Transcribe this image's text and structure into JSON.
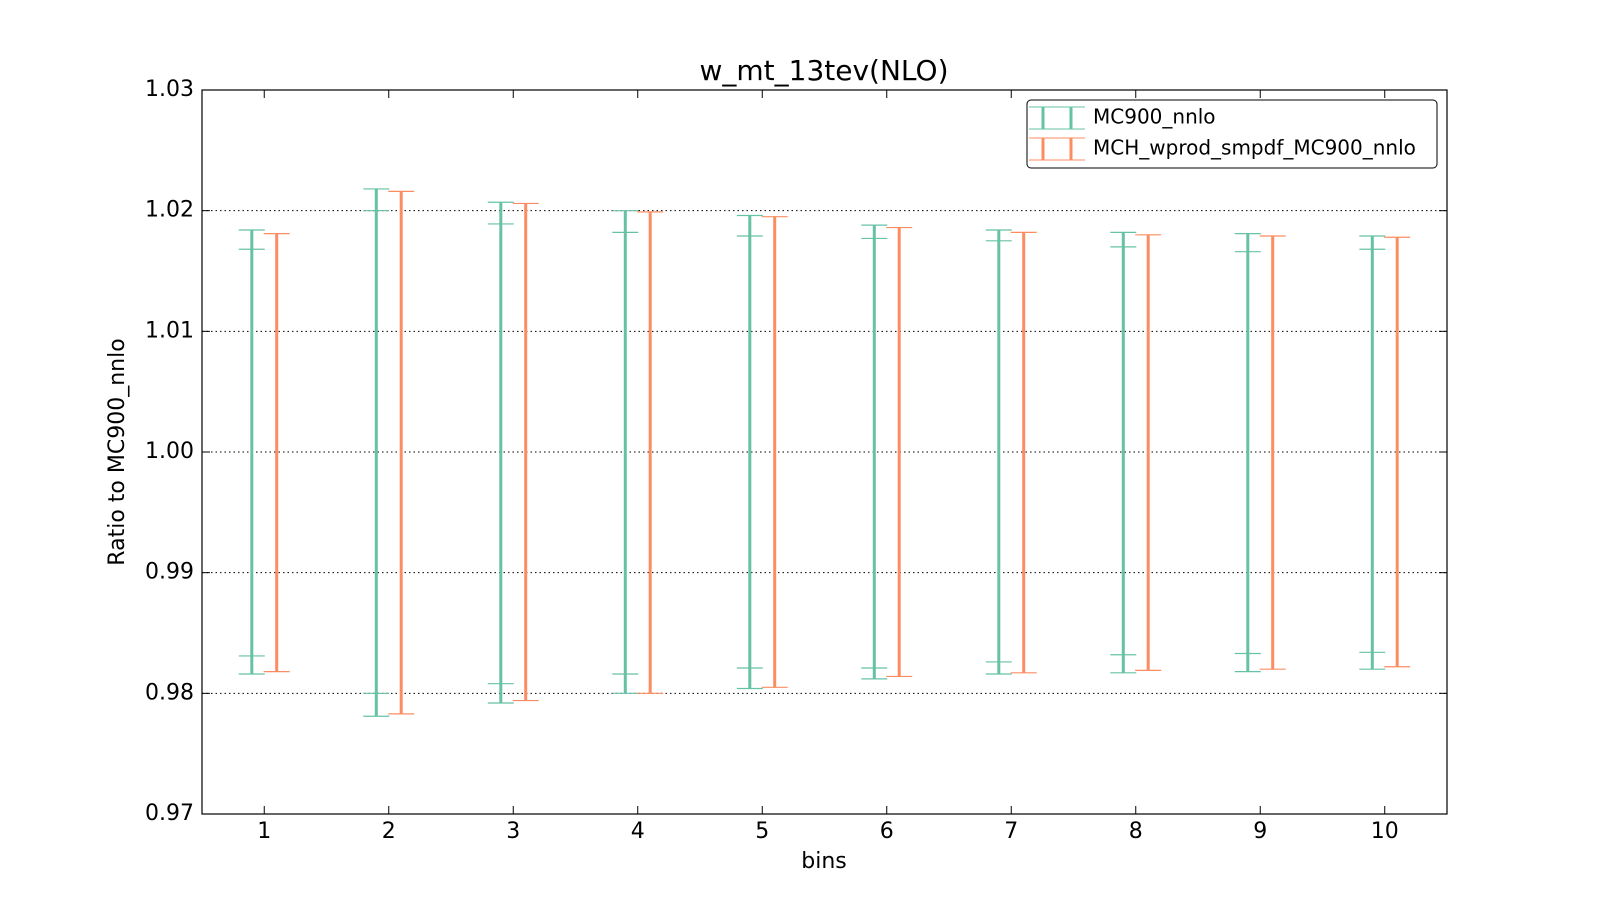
{
  "chart_data": {
    "type": "errorbar",
    "title": "w_mt_13tev(NLO)",
    "x_label": "bins",
    "y_label": "Ratio to MC900_nnlo",
    "x": [
      1,
      2,
      3,
      4,
      5,
      6,
      7,
      8,
      9,
      10
    ],
    "xlim": [
      0.5,
      10.5
    ],
    "xticks": [
      1,
      2,
      3,
      4,
      5,
      6,
      7,
      8,
      9,
      10
    ],
    "ylim": [
      0.97,
      1.03
    ],
    "yticks": [
      0.97,
      0.98,
      0.99,
      {
        "value": 1.0,
        "label": "1.00"
      },
      1.01,
      1.02,
      1.03
    ],
    "grid": true,
    "legend": "upper right",
    "series": [
      {
        "name": "MC900_nnlo",
        "color": "#66c2a5",
        "offset": -0.1,
        "upper": [
          1.0184,
          1.0218,
          1.0207,
          1.02,
          1.0196,
          1.0188,
          1.0184,
          1.0182,
          1.0181,
          1.0179
        ],
        "lower": [
          0.9816,
          0.9781,
          0.9792,
          0.98,
          0.9804,
          0.9812,
          0.9816,
          0.9817,
          0.9818,
          0.982
        ],
        "inner_upper": [
          1.0168,
          1.02,
          1.0189,
          1.0182,
          1.0179,
          1.0177,
          1.0175,
          1.017,
          1.0166,
          1.0168
        ],
        "inner_lower": [
          0.9831,
          0.98,
          0.9808,
          0.9816,
          0.9821,
          0.9821,
          0.9826,
          0.9832,
          0.9833,
          0.9834
        ]
      },
      {
        "name": "MCH_wprod_smpdf_MC900_nnlo",
        "color": "#fc8d62",
        "offset": 0.1,
        "upper": [
          1.0181,
          1.0216,
          1.0206,
          1.0199,
          1.0195,
          1.0186,
          1.0182,
          1.018,
          1.0179,
          1.0178
        ],
        "lower": [
          0.9818,
          0.9783,
          0.9794,
          0.98,
          0.9805,
          0.9814,
          0.9817,
          0.9819,
          0.982,
          0.9822
        ]
      }
    ]
  }
}
